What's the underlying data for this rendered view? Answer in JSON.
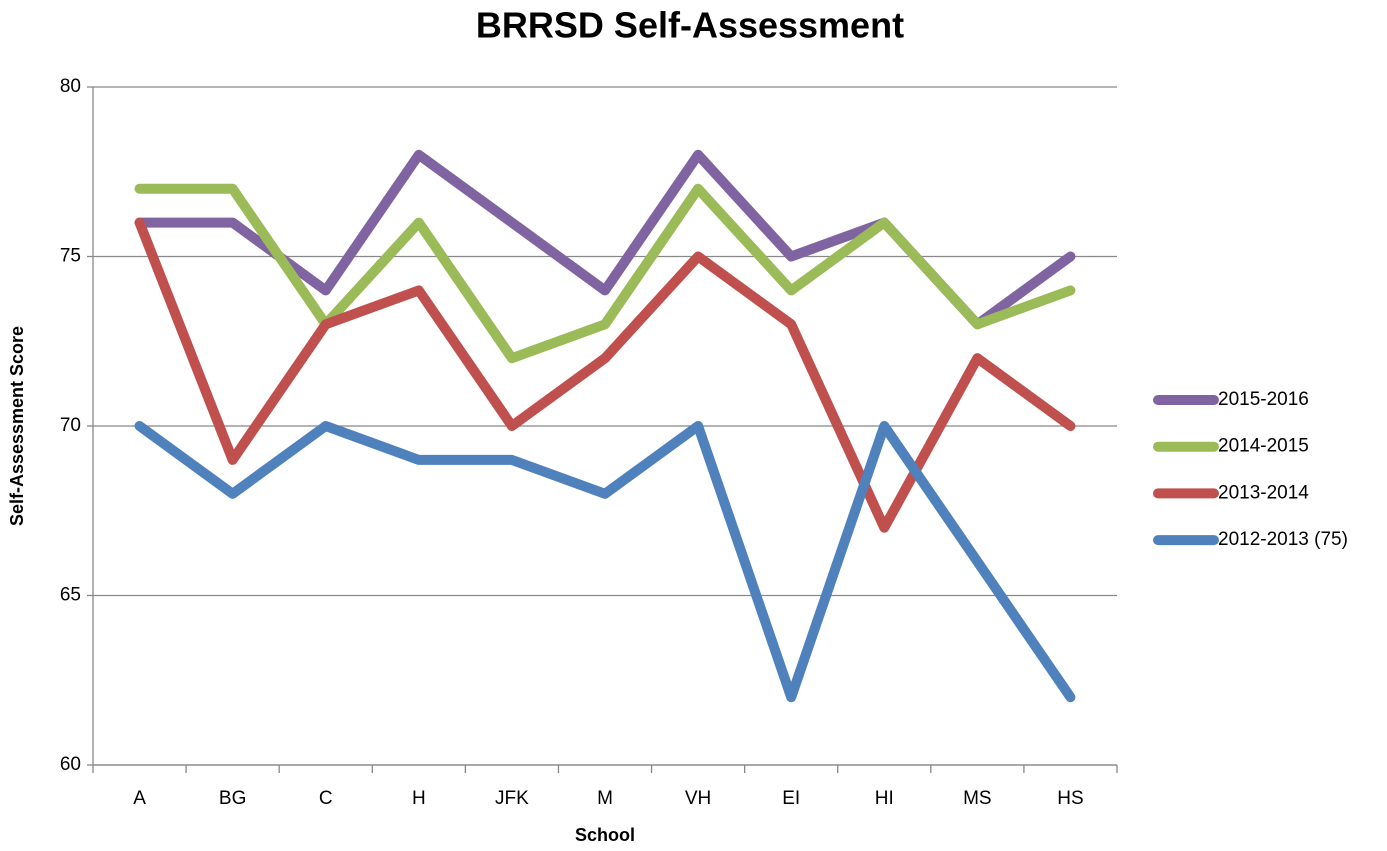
{
  "chart_data": {
    "type": "line",
    "title": "BRRSD Self-Assessment",
    "x_label": "School",
    "y_label": "Self-Assessment Score",
    "categories": [
      "A",
      "BG",
      "C",
      "H",
      "JFK",
      "M",
      "VH",
      "EI",
      "HI",
      "MS",
      "HS"
    ],
    "series": [
      {
        "name": "2015-2016",
        "color": "#8064a2",
        "values": [
          76,
          76,
          74,
          78,
          76,
          74,
          78,
          75,
          76,
          73,
          75
        ]
      },
      {
        "name": "2014-2015",
        "color": "#9bbb59",
        "values": [
          77,
          77,
          73,
          76,
          72,
          73,
          77,
          74,
          76,
          73,
          74
        ]
      },
      {
        "name": "2013-2014",
        "color": "#c0504d",
        "values": [
          76,
          69,
          73,
          74,
          70,
          72,
          75,
          73,
          67,
          72,
          70
        ]
      },
      {
        "name": "2012-2013 (75)",
        "color": "#4f81bd",
        "values": [
          70,
          68,
          70,
          69,
          69,
          68,
          70,
          62,
          70,
          66,
          62
        ]
      }
    ],
    "ylim": [
      60,
      80
    ],
    "yticks": [
      60,
      65,
      70,
      75,
      80
    ],
    "grid": true,
    "legend": "right"
  }
}
